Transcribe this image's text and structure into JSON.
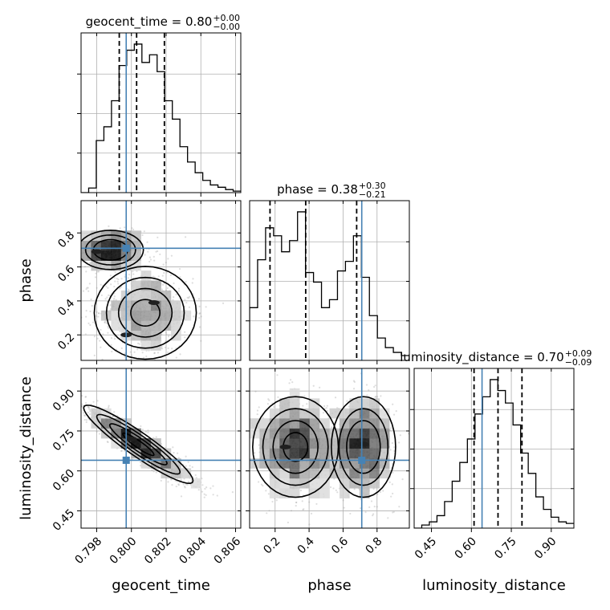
{
  "chart_data": {
    "type": "corner",
    "parameters": [
      {
        "key": "geocent_time",
        "label": "geocent_time",
        "range": [
          0.7971,
          0.8063
        ],
        "ticks": [
          0.798,
          0.8,
          0.802,
          0.804,
          0.806
        ],
        "tick_labels": [
          "0.798",
          "0.800",
          "0.802",
          "0.804",
          "0.806"
        ],
        "truth": 0.7997,
        "quantiles": [
          0.7993,
          0.8003,
          0.8019
        ],
        "title": {
          "main": "geocent_time = 0.80",
          "sup": "+0.00",
          "sub": "−0.00"
        },
        "hist": [
          0,
          0.03,
          0.34,
          0.43,
          0.6,
          0.83,
          0.93,
          0.97,
          0.85,
          0.9,
          0.79,
          0.6,
          0.48,
          0.3,
          0.2,
          0.13,
          0.08,
          0.05,
          0.035,
          0.02,
          0.01
        ]
      },
      {
        "key": "phase",
        "label": "phase",
        "range": [
          0.05,
          0.99
        ],
        "ticks": [
          0.2,
          0.4,
          0.6,
          0.8
        ],
        "tick_labels": [
          "0.2",
          "0.4",
          "0.6",
          "0.8"
        ],
        "truth": 0.71,
        "quantiles": [
          0.17,
          0.38,
          0.68
        ],
        "title": {
          "main": "phase = 0.38",
          "sup": "+0.30",
          "sub": "−0.21"
        },
        "hist": [
          0.33,
          0.63,
          0.83,
          0.78,
          0.68,
          0.75,
          0.93,
          0.55,
          0.49,
          0.33,
          0.38,
          0.56,
          0.62,
          0.78,
          0.52,
          0.28,
          0.14,
          0.08,
          0.05,
          0.03
        ]
      },
      {
        "key": "luminosity_distance",
        "label": "luminosity_distance",
        "range": [
          0.385,
          0.985
        ],
        "ticks": [
          0.45,
          0.6,
          0.75,
          0.9
        ],
        "tick_labels": [
          "0.45",
          "0.60",
          "0.75",
          "0.90"
        ],
        "truth": 0.64,
        "quantiles": [
          0.61,
          0.7,
          0.79
        ],
        "title": {
          "main": "luminosity_distance = 0.70",
          "sup": "+0.09",
          "sub": "−0.09"
        },
        "hist": [
          0,
          0.02,
          0.04,
          0.08,
          0.17,
          0.3,
          0.42,
          0.57,
          0.73,
          0.84,
          0.95,
          0.88,
          0.8,
          0.66,
          0.48,
          0.35,
          0.2,
          0.12,
          0.07,
          0.04,
          0.03
        ]
      }
    ],
    "pairs": [
      {
        "x": "geocent_time",
        "y": "phase",
        "blobs": [
          {
            "cx": 0.7988,
            "cy": 0.7,
            "sx": 0.0009,
            "sy": 0.055,
            "w": 0.45
          },
          {
            "cx": 0.8008,
            "cy": 0.33,
            "sx": 0.0014,
            "sy": 0.13,
            "w": 0.55
          }
        ],
        "peaks": [
          [
            0.798,
            0.69
          ],
          [
            0.8013,
            0.39
          ],
          [
            0.7997,
            0.2
          ]
        ]
      },
      {
        "x": "geocent_time",
        "y": "luminosity_distance",
        "blobs": [
          {
            "cx": 0.8004,
            "cy": 0.7,
            "sx": 0.0015,
            "sy": 0.07,
            "corr": -0.93,
            "w": 1.0
          }
        ],
        "peaks": [
          [
            0.8,
            0.72
          ]
        ]
      },
      {
        "x": "phase",
        "y": "luminosity_distance",
        "blobs": [
          {
            "cx": 0.32,
            "cy": 0.69,
            "sx": 0.12,
            "sy": 0.09,
            "w": 0.55
          },
          {
            "cx": 0.72,
            "cy": 0.69,
            "sx": 0.09,
            "sy": 0.09,
            "w": 0.45
          }
        ],
        "peaks": [
          [
            0.26,
            0.69
          ],
          [
            0.72,
            0.7
          ]
        ]
      }
    ]
  }
}
